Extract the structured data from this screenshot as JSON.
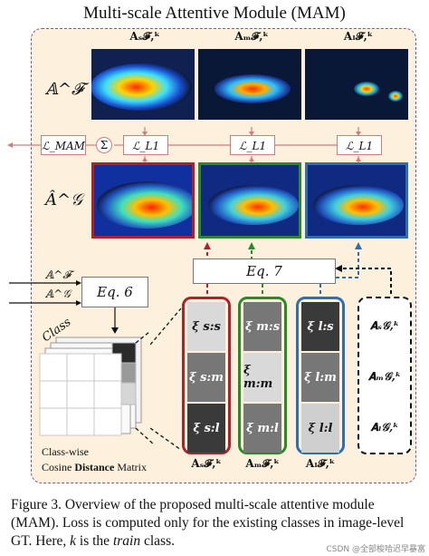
{
  "title": "Multi-scale Attentive Module (MAM)",
  "row_labels": {
    "a_f": "𝔸^𝓕",
    "a_g_hat": "Â^𝒢"
  },
  "top_heads": [
    "A_s^{𝓕,k}",
    "A_m^{𝓕,k}",
    "A_l^{𝓕,k}"
  ],
  "top_heads_display": [
    "𝐀ₛ𝓕,ᵏ",
    "𝐀ₘ𝓕,ᵏ",
    "𝐀ₗ𝓕,ᵏ"
  ],
  "losses": {
    "mam": "ℒ_MAM",
    "sum": "Σ",
    "l1_a": "ℒ_L1",
    "l1_b": "ℒ_L1",
    "l1_c": "ℒ_L1"
  },
  "equations": {
    "eq6": "Eq. 6",
    "eq7": "Eq. 7"
  },
  "inputs": {
    "af": "𝔸^𝓕",
    "ag": "𝔸^𝒢"
  },
  "class_label": "Class",
  "matrix_label_line1": "Class-wise",
  "matrix_label_line2_pre": "Cosine ",
  "matrix_label_line2_bold": "Distance",
  "matrix_label_line2_post": " Matrix",
  "columns": [
    {
      "cells": [
        "ξ s:s",
        "ξ s:m",
        "ξ s:l"
      ],
      "border": "#b0202a",
      "shades": [
        "#d9d9d9",
        "#777777",
        "#3a3a3a"
      ]
    },
    {
      "cells": [
        "ξ m:s",
        "ξ m:m",
        "ξ m:l"
      ],
      "border": "#2a8a2a",
      "shades": [
        "#777777",
        "#d9d9d9",
        "#777777"
      ]
    },
    {
      "cells": [
        "ξ l:s",
        "ξ l:m",
        "ξ l:l"
      ],
      "border": "#2e6fb0",
      "shades": [
        "#3a3a3a",
        "#777777",
        "#cfcfcf"
      ]
    }
  ],
  "bottom_heads": [
    "𝐀ₛ𝓕,ᵏ",
    "𝐀ₘ𝓕,ᵏ",
    "𝐀ₗ𝓕,ᵏ"
  ],
  "g_heads": [
    "𝐀ₛ𝒢,ᵏ",
    "𝐀ₘ𝒢,ᵏ",
    "𝐀ₗ𝒢,ᵏ"
  ],
  "caption": "Figure 3. Overview of the proposed multi-scale attentive module (MAM). Loss is computed only for the existing classes in image-level GT. Here, k is the train class.",
  "caption_parts": {
    "p1": "Figure 3.  Overview of the proposed multi-scale attentive module (MAM). Loss is computed only for the existing classes in image-level GT. Here, ",
    "k": "k",
    "p2": " is the ",
    "train": "train",
    "p3": " class."
  },
  "watermark": "CSDN @全部梭哈迟早暴富"
}
